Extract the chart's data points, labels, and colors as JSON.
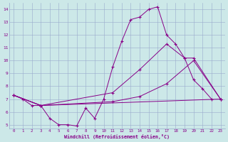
{
  "xlabel": "Windchill (Refroidissement éolien,°C)",
  "bg_color": "#cce8e8",
  "line_color": "#880088",
  "grid_color": "#99aacc",
  "xlim": [
    -0.5,
    23.5
  ],
  "ylim": [
    4.7,
    14.5
  ],
  "xticks": [
    0,
    1,
    2,
    3,
    4,
    5,
    6,
    7,
    8,
    9,
    10,
    11,
    12,
    13,
    14,
    15,
    16,
    17,
    18,
    19,
    20,
    21,
    22,
    23
  ],
  "yticks": [
    5,
    6,
    7,
    8,
    9,
    10,
    11,
    12,
    13,
    14
  ],
  "series": [
    {
      "x": [
        0,
        1,
        2,
        3,
        4,
        5,
        6,
        7,
        8,
        9,
        10,
        11,
        12,
        13,
        14,
        15,
        16,
        17,
        18,
        19,
        20,
        21,
        22
      ],
      "y": [
        7.3,
        7.0,
        6.5,
        6.5,
        5.5,
        5.0,
        5.0,
        4.9,
        6.3,
        5.5,
        7.0,
        9.5,
        11.5,
        13.2,
        13.4,
        14.0,
        14.2,
        12.0,
        11.3,
        10.2,
        8.5,
        7.8,
        7.0
      ]
    },
    {
      "x": [
        0,
        3,
        23
      ],
      "y": [
        7.3,
        6.5,
        7.0
      ]
    },
    {
      "x": [
        0,
        3,
        11,
        14,
        17,
        20,
        23
      ],
      "y": [
        7.3,
        6.5,
        6.8,
        7.2,
        8.2,
        10.0,
        7.0
      ]
    },
    {
      "x": [
        0,
        3,
        11,
        14,
        17,
        19,
        20,
        23
      ],
      "y": [
        7.3,
        6.5,
        7.5,
        9.3,
        11.3,
        10.2,
        10.2,
        7.0
      ]
    }
  ]
}
